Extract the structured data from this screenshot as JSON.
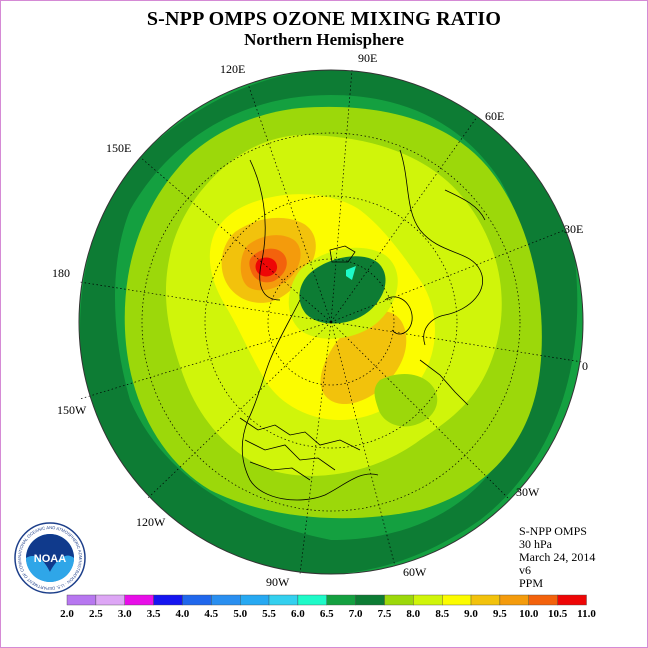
{
  "header": {
    "title": "S-NPP OMPS OZONE MIXING RATIO",
    "subtitle": "Northern Hemisphere"
  },
  "longitude_labels": [
    "90E",
    "60E",
    "30E",
    "0",
    "30W",
    "60W",
    "90W",
    "120W",
    "150W",
    "180",
    "150E",
    "120E"
  ],
  "info": {
    "instrument": "S-NPP OMPS",
    "level": "30 hPa",
    "date": "March 24, 2014",
    "version": "v6",
    "units": "PPM"
  },
  "logo": {
    "text": "NOAA",
    "ring_text": "NATIONAL OCEANIC AND ATMOSPHERIC ADMINISTRATION · U.S. DEPARTMENT OF COMMERCE"
  },
  "colorbar": {
    "ticks": [
      "2.0",
      "2.5",
      "3.0",
      "3.5",
      "4.0",
      "4.5",
      "5.0",
      "5.5",
      "6.0",
      "6.5",
      "7.0",
      "7.5",
      "8.0",
      "8.5",
      "9.0",
      "9.5",
      "10.0",
      "10.5",
      "11.0"
    ],
    "colors": [
      "#b777f0",
      "#dda6f5",
      "#e80ee8",
      "#1515f0",
      "#2067ec",
      "#2a8ff0",
      "#27a9f2",
      "#34d0ef",
      "#1efac8",
      "#14a040",
      "#0d7c34",
      "#9cd80a",
      "#d0f50a",
      "#fcfc00",
      "#f2c20c",
      "#f49b0c",
      "#f3620c",
      "#ee0606",
      "#8c4c2e"
    ]
  }
}
